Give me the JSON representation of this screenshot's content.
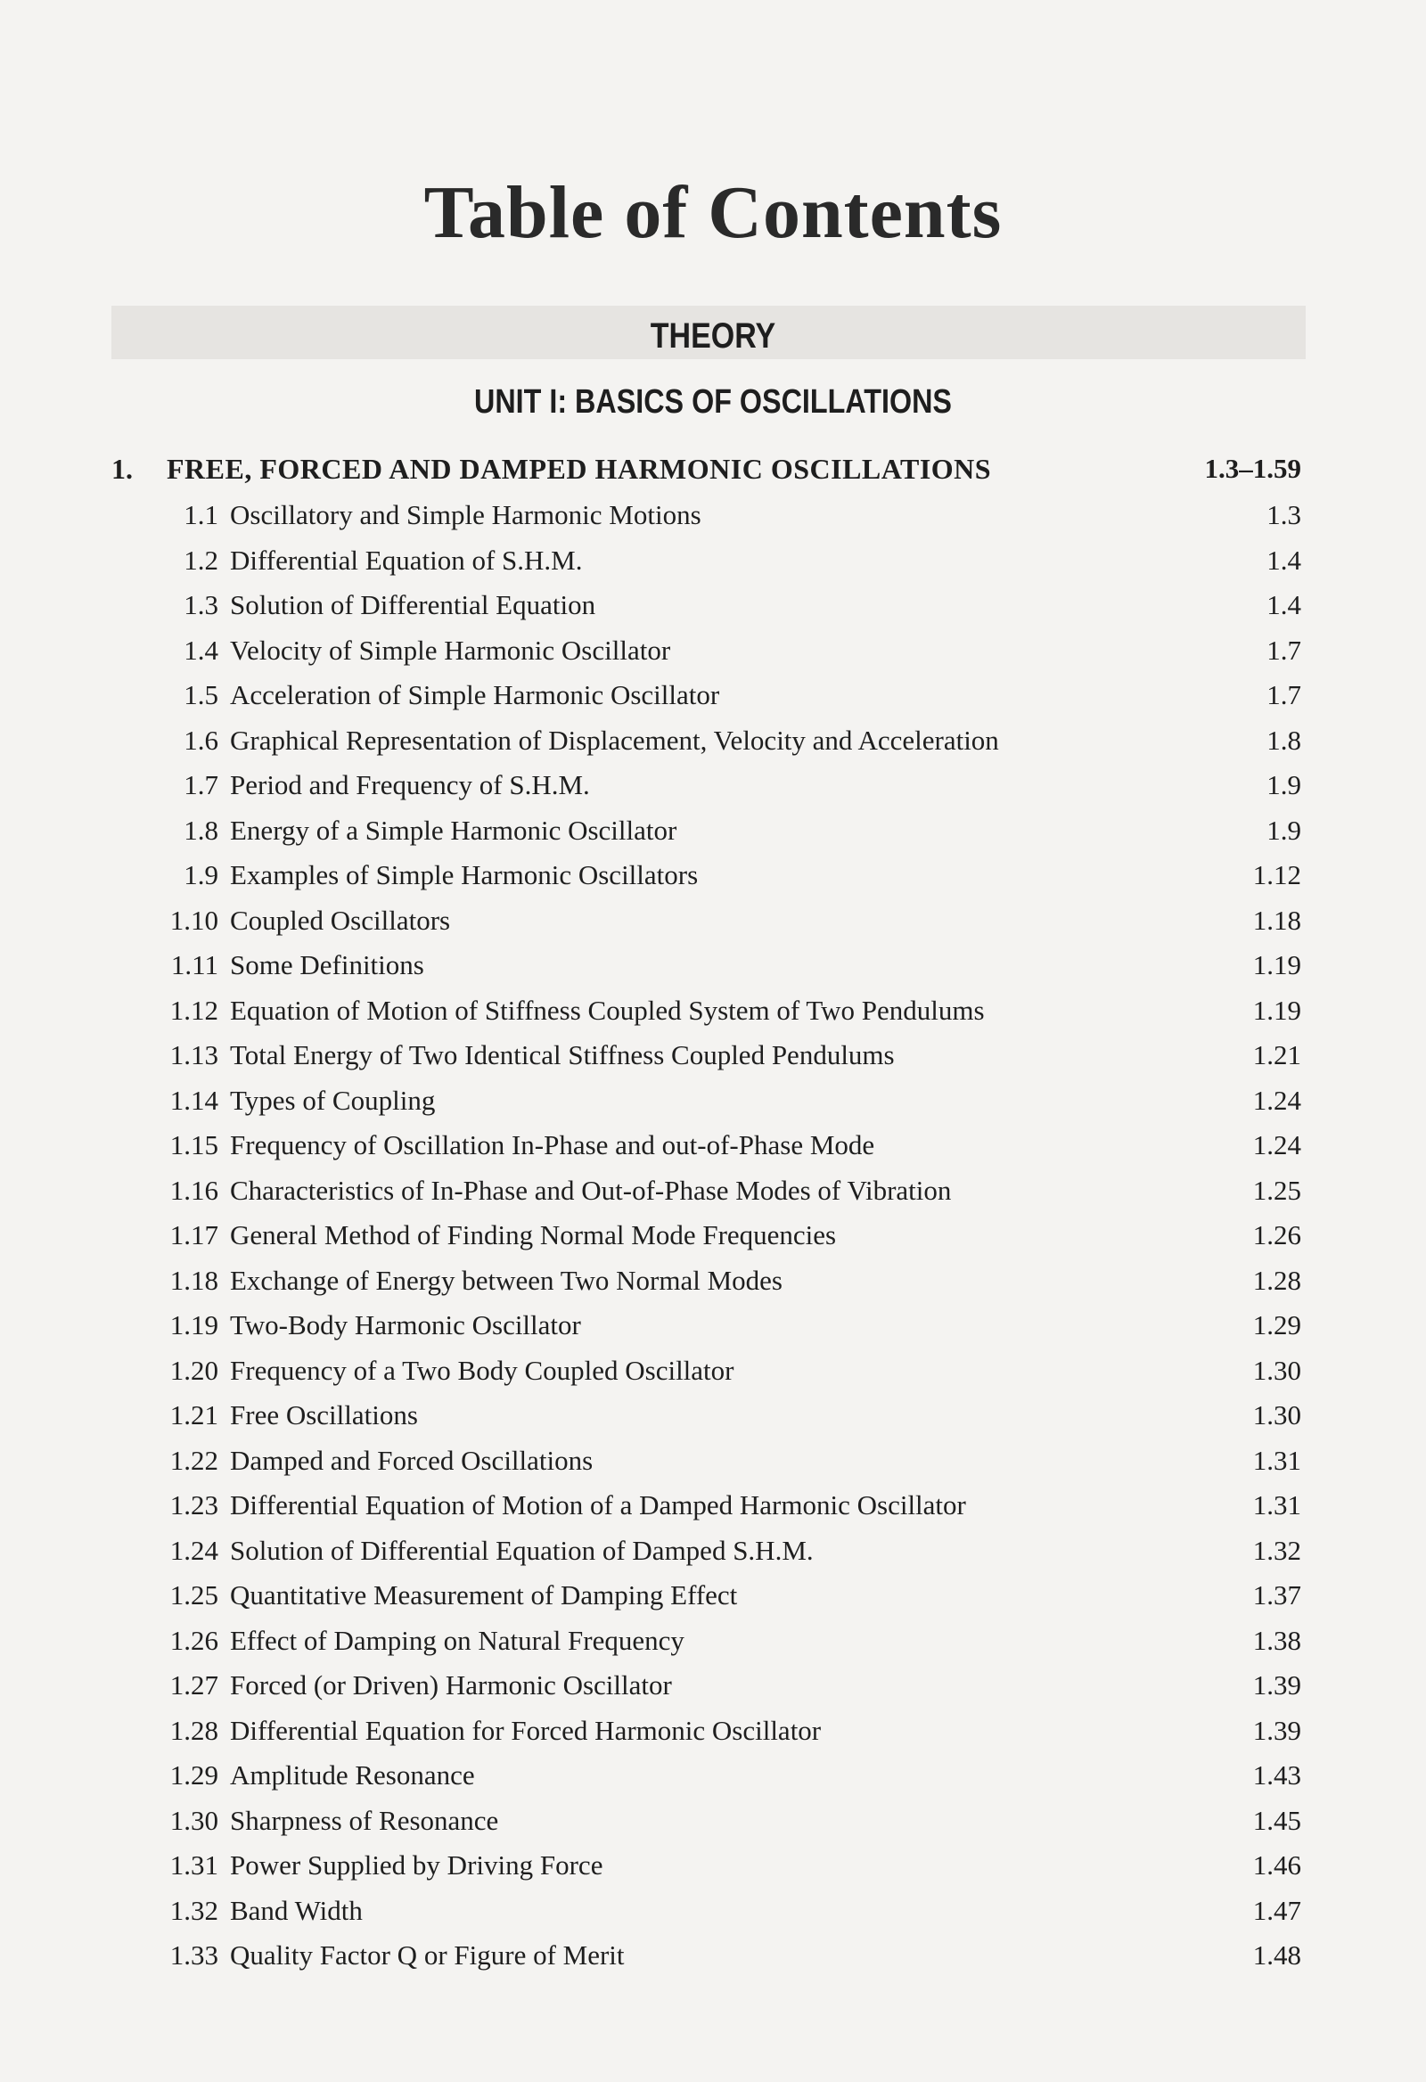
{
  "title": "Table of Contents",
  "section": "THEORY",
  "unit": "UNIT I: BASICS OF OSCILLATIONS",
  "chapter": {
    "number": "1.",
    "title": "FREE, FORCED AND DAMPED HARMONIC OSCILLATIONS",
    "pages": "1.3–1.59"
  },
  "entries": [
    {
      "number": "1.1",
      "title": "Oscillatory and Simple Harmonic Motions",
      "page": "1.3"
    },
    {
      "number": "1.2",
      "title": "Differential Equation of S.H.M.",
      "page": "1.4"
    },
    {
      "number": "1.3",
      "title": "Solution of Differential Equation",
      "page": "1.4"
    },
    {
      "number": "1.4",
      "title": "Velocity of Simple Harmonic Oscillator",
      "page": "1.7"
    },
    {
      "number": "1.5",
      "title": "Acceleration of Simple Harmonic Oscillator",
      "page": "1.7"
    },
    {
      "number": "1.6",
      "title": "Graphical Representation of Displacement, Velocity and Acceleration",
      "page": "1.8"
    },
    {
      "number": "1.7",
      "title": "Period and Frequency of S.H.M.",
      "page": "1.9"
    },
    {
      "number": "1.8",
      "title": "Energy of a Simple Harmonic Oscillator",
      "page": "1.9"
    },
    {
      "number": "1.9",
      "title": "Examples of Simple Harmonic Oscillators",
      "page": "1.12"
    },
    {
      "number": "1.10",
      "title": "Coupled Oscillators",
      "page": "1.18"
    },
    {
      "number": "1.11",
      "title": "Some Definitions",
      "page": "1.19"
    },
    {
      "number": "1.12",
      "title": "Equation of Motion of Stiffness Coupled System of Two Pendulums",
      "page": "1.19"
    },
    {
      "number": "1.13",
      "title": "Total Energy of Two Identical Stiffness Coupled Pendulums",
      "page": "1.21"
    },
    {
      "number": "1.14",
      "title": "Types of Coupling",
      "page": "1.24"
    },
    {
      "number": "1.15",
      "title": "Frequency of Oscillation In-Phase and out-of-Phase Mode",
      "page": "1.24"
    },
    {
      "number": "1.16",
      "title": "Characteristics of In-Phase and Out-of-Phase Modes of Vibration",
      "page": "1.25"
    },
    {
      "number": "1.17",
      "title": "General Method of Finding Normal Mode Frequencies",
      "page": "1.26"
    },
    {
      "number": "1.18",
      "title": "Exchange of Energy between Two Normal Modes",
      "page": "1.28"
    },
    {
      "number": "1.19",
      "title": "Two-Body Harmonic Oscillator",
      "page": "1.29"
    },
    {
      "number": "1.20",
      "title": "Frequency of a Two Body Coupled Oscillator",
      "page": "1.30"
    },
    {
      "number": "1.21",
      "title": "Free Oscillations",
      "page": "1.30"
    },
    {
      "number": "1.22",
      "title": "Damped and Forced Oscillations",
      "page": "1.31"
    },
    {
      "number": "1.23",
      "title": "Differential Equation of Motion of a Damped Harmonic Oscillator",
      "page": "1.31"
    },
    {
      "number": "1.24",
      "title": "Solution of Differential Equation of Damped S.H.M.",
      "page": "1.32"
    },
    {
      "number": "1.25",
      "title": "Quantitative Measurement of Damping Effect",
      "page": "1.37"
    },
    {
      "number": "1.26",
      "title": "Effect of Damping on Natural Frequency",
      "page": "1.38"
    },
    {
      "number": "1.27",
      "title": "Forced (or Driven) Harmonic Oscillator",
      "page": "1.39"
    },
    {
      "number": "1.28",
      "title": "Differential Equation for Forced Harmonic Oscillator",
      "page": "1.39"
    },
    {
      "number": "1.29",
      "title": "Amplitude Resonance",
      "page": "1.43"
    },
    {
      "number": "1.30",
      "title": "Sharpness of Resonance",
      "page": "1.45"
    },
    {
      "number": "1.31",
      "title": "Power Supplied by Driving Force",
      "page": "1.46"
    },
    {
      "number": "1.32",
      "title": "Band Width",
      "page": "1.47"
    },
    {
      "number": "1.33",
      "title": "Quality Factor Q or Figure of Merit",
      "page": "1.48"
    }
  ]
}
